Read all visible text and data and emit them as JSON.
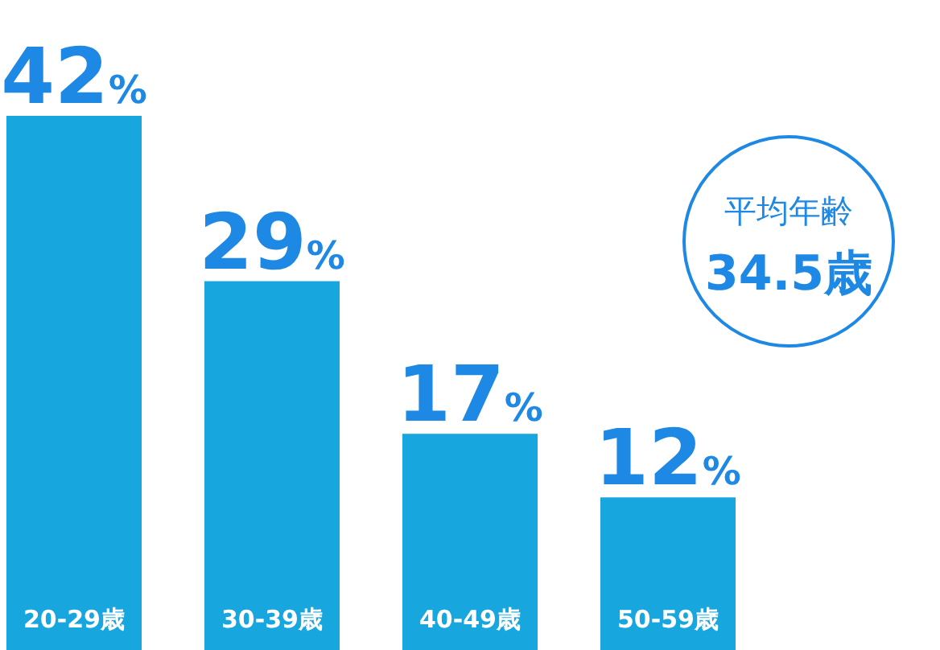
{
  "chart_data": {
    "type": "bar",
    "categories": [
      "20-29歳",
      "30-39歳",
      "40-49歳",
      "50-59歳"
    ],
    "values": [
      42,
      29,
      17,
      12
    ],
    "value_labels": [
      "42%",
      "29%",
      "17%",
      "12%"
    ],
    "color": "#17a6de",
    "annotations": [
      "平均年齢",
      "34.5歳"
    ]
  }
}
